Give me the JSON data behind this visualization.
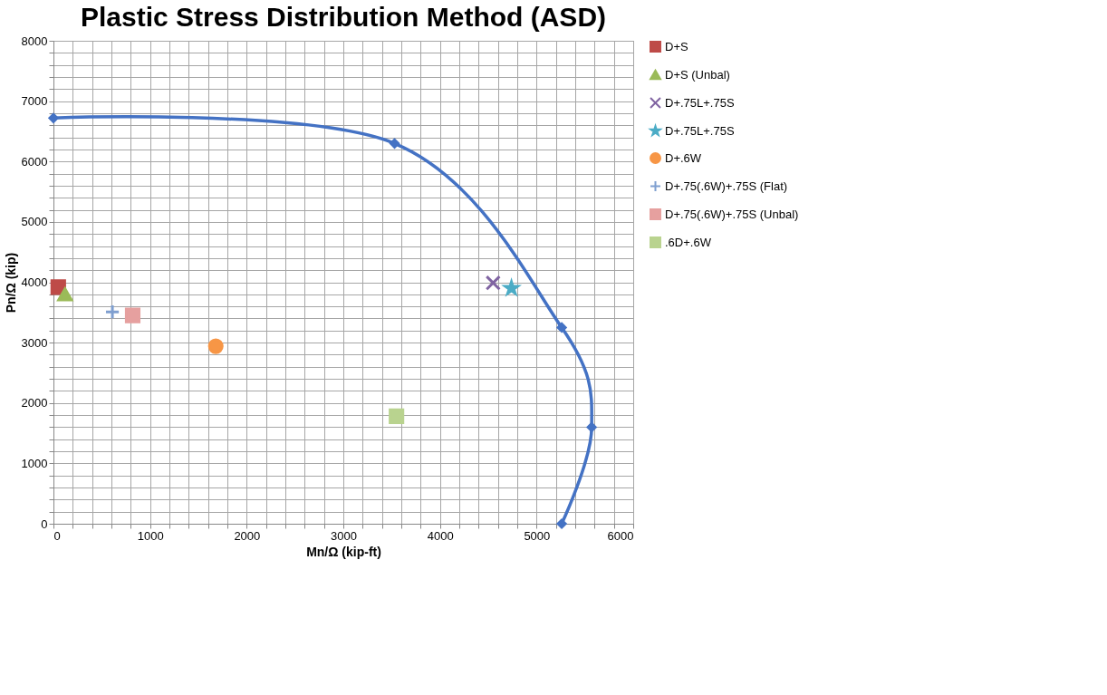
{
  "chart_data": {
    "type": "scatter",
    "title": "Plastic Stress Distribution Method (ASD)",
    "xlabel": "Mn/Ω (kip-ft)",
    "ylabel": "Pn/Ω (kip)",
    "xlim": [
      0,
      6000
    ],
    "ylim": [
      0,
      8000
    ],
    "xticks": [
      0,
      {
        "value": 200,
        "label": null
      },
      {
        "value": 400,
        "label": null
      },
      {
        "value": 600,
        "label": null
      },
      {
        "value": 800,
        "label": null
      },
      1000,
      {
        "value": 1200,
        "label": null
      },
      {
        "value": 1400,
        "label": null
      },
      {
        "value": 1600,
        "label": null
      },
      {
        "value": 1800,
        "label": null
      },
      2000,
      {
        "value": 2200,
        "label": null
      },
      {
        "value": 2400,
        "label": null
      },
      {
        "value": 2600,
        "label": null
      },
      {
        "value": 2800,
        "label": null
      },
      3000,
      {
        "value": 3200,
        "label": null
      },
      {
        "value": 3400,
        "label": null
      },
      {
        "value": 3600,
        "label": null
      },
      {
        "value": 3800,
        "label": null
      },
      4000,
      {
        "value": 4200,
        "label": null
      },
      {
        "value": 4400,
        "label": null
      },
      {
        "value": 4600,
        "label": null
      },
      {
        "value": 4800,
        "label": null
      },
      5000,
      {
        "value": 5200,
        "label": null
      },
      {
        "value": 5400,
        "label": null
      },
      {
        "value": 5600,
        "label": null
      },
      {
        "value": 5800,
        "label": null
      },
      6000
    ],
    "yticks": [
      0,
      {
        "value": 200,
        "label": null
      },
      {
        "value": 400,
        "label": null
      },
      {
        "value": 600,
        "label": null
      },
      {
        "value": 800,
        "label": null
      },
      1000,
      {
        "value": 1200,
        "label": null
      },
      {
        "value": 1400,
        "label": null
      },
      {
        "value": 1600,
        "label": null
      },
      {
        "value": 1800,
        "label": null
      },
      2000,
      {
        "value": 2200,
        "label": null
      },
      {
        "value": 2400,
        "label": null
      },
      {
        "value": 2600,
        "label": null
      },
      {
        "value": 2800,
        "label": null
      },
      3000,
      {
        "value": 3200,
        "label": null
      },
      {
        "value": 3400,
        "label": null
      },
      {
        "value": 3600,
        "label": null
      },
      {
        "value": 3800,
        "label": null
      },
      4000,
      {
        "value": 4200,
        "label": null
      },
      {
        "value": 4400,
        "label": null
      },
      {
        "value": 4600,
        "label": null
      },
      {
        "value": 4800,
        "label": null
      },
      5000,
      {
        "value": 5200,
        "label": null
      },
      {
        "value": 5400,
        "label": null
      },
      {
        "value": 5600,
        "label": null
      },
      {
        "value": 5800,
        "label": null
      },
      6000,
      {
        "value": 6200,
        "label": null
      },
      {
        "value": 6400,
        "label": null
      },
      {
        "value": 6600,
        "label": null
      },
      {
        "value": 6800,
        "label": null
      },
      7000,
      {
        "value": 7200,
        "label": null
      },
      {
        "value": 7400,
        "label": null
      },
      {
        "value": 7600,
        "label": null
      },
      {
        "value": 7800,
        "label": null
      },
      8000
    ],
    "grid": true,
    "legend": "right",
    "series": [
      {
        "type": "line",
        "color": "#4472c4",
        "marker": "diamond",
        "line_style": "solid",
        "x": [
          0,
          3530,
          5260,
          5570,
          5260
        ],
        "values": [
          6720,
          6300,
          3250,
          1600,
          0
        ]
      },
      {
        "name": "D+S",
        "color": "#be4b48",
        "marker": "square",
        "x": [
          50
        ],
        "values": [
          3920
        ]
      },
      {
        "name": "D+S (Unbal)",
        "color": "#9bbb59",
        "marker": "triangle",
        "x": [
          120
        ],
        "values": [
          3800
        ]
      },
      {
        "name": "D+.75L+.75S",
        "color": "#8064a2",
        "marker": "x",
        "x": [
          4550
        ],
        "values": [
          3990
        ]
      },
      {
        "name": "D+.75L+.75S",
        "color": "#4bacc6",
        "marker": "star",
        "x": [
          4740
        ],
        "values": [
          3900
        ]
      },
      {
        "name": "D+.6W",
        "color": "#f79646",
        "marker": "circle",
        "x": [
          1680
        ],
        "values": [
          2940
        ]
      },
      {
        "name": "D+.75(.6W)+.75S (Flat)",
        "color": "#7f9fd0",
        "marker": "cross",
        "x": [
          610
        ],
        "values": [
          3510
        ]
      },
      {
        "name": "D+.75(.6W)+.75S (Unbal)",
        "color": "#e6a09f",
        "marker": "square",
        "x": [
          820
        ],
        "values": [
          3450
        ]
      },
      {
        "name": ".6D+.6W",
        "color": "#b9d38f",
        "marker": "square",
        "x": [
          3550
        ],
        "values": [
          1780
        ]
      }
    ]
  }
}
